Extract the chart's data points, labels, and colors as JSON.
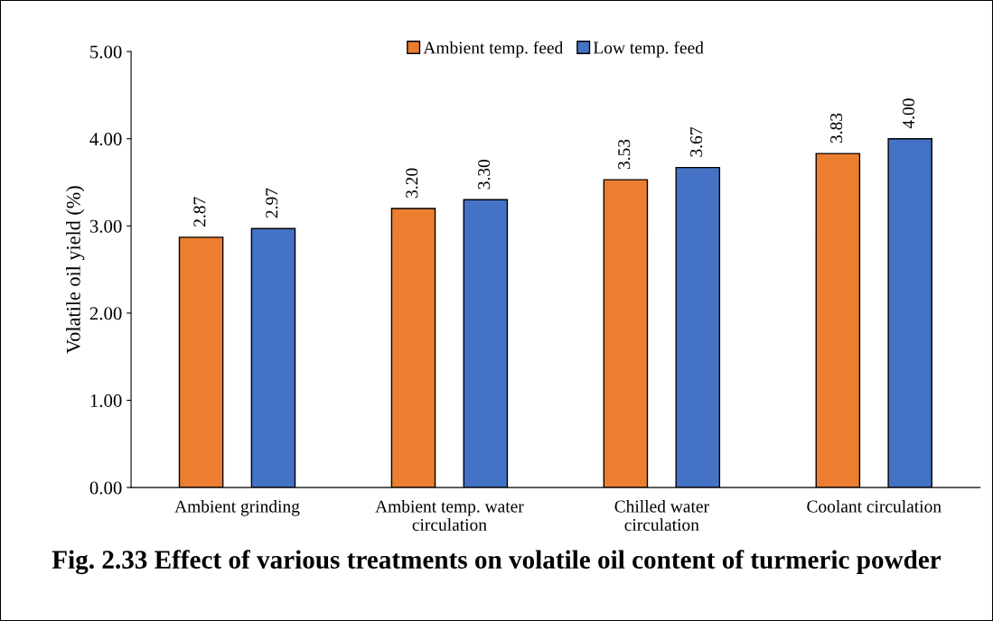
{
  "chart_data": {
    "type": "bar",
    "title": "Fig. 2.33 Effect of various treatments on volatile oil content of turmeric powder",
    "ylabel": "Volatile oil yield (%)",
    "categories": [
      "Ambient grinding",
      "Ambient temp. water\ncirculation",
      "Chilled water\ncirculation",
      "Coolant circulation"
    ],
    "series": [
      {
        "name": "Ambient temp. feed",
        "color": "#ed7d31",
        "values": [
          2.87,
          3.2,
          3.53,
          3.83
        ],
        "value_labels": [
          "2.87",
          "3.20",
          "3.53",
          "3.83"
        ]
      },
      {
        "name": "Low temp. feed",
        "color": "#4472c4",
        "values": [
          2.97,
          3.3,
          3.67,
          4.0
        ],
        "value_labels": [
          "2.97",
          "3.30",
          "3.67",
          "4.00"
        ]
      }
    ],
    "ylim": [
      0,
      5
    ],
    "yticks": [
      {
        "value": 0,
        "label": "0.00"
      },
      {
        "value": 1,
        "label": "1.00"
      },
      {
        "value": 2,
        "label": "2.00"
      },
      {
        "value": 3,
        "label": "3.00"
      },
      {
        "value": 4,
        "label": "4.00"
      },
      {
        "value": 5,
        "label": "5.00"
      }
    ],
    "legend": "top",
    "grid": false
  }
}
